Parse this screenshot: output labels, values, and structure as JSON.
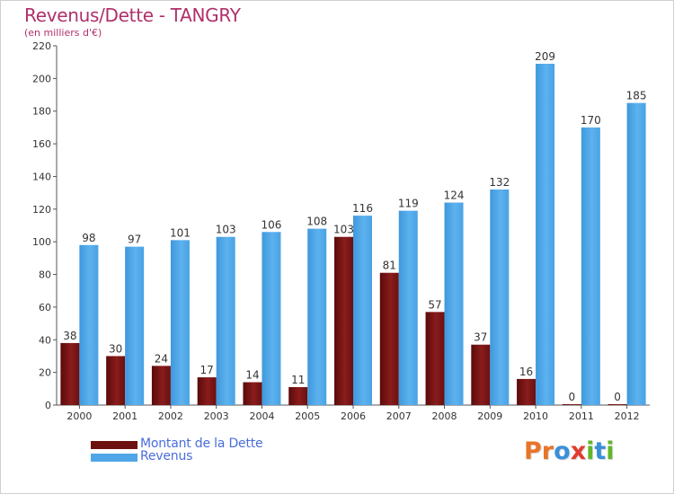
{
  "title": "Revenus/Dette - TANGRY",
  "subtitle": "(en milliers d'€)",
  "colors": {
    "title": "#b0306a",
    "debt": "#7a1414",
    "revenue": "#4ea6e8",
    "legend_text": "#4a6ddc"
  },
  "legend": [
    {
      "label": "Montant de la Dette",
      "color": "#6e0f0f"
    },
    {
      "label": "Revenus",
      "color": "#4ea6e8"
    }
  ],
  "logo": {
    "text": "Proxiti"
  },
  "chart_data": {
    "type": "bar",
    "categories": [
      "2000",
      "2001",
      "2002",
      "2003",
      "2004",
      "2005",
      "2006",
      "2007",
      "2008",
      "2009",
      "2010",
      "2011",
      "2012"
    ],
    "series": [
      {
        "name": "Montant de la Dette",
        "values": [
          38,
          30,
          24,
          17,
          14,
          11,
          103,
          81,
          57,
          37,
          16,
          0,
          0
        ]
      },
      {
        "name": "Revenus",
        "values": [
          98,
          97,
          101,
          103,
          106,
          108,
          116,
          119,
          124,
          132,
          209,
          170,
          185
        ]
      }
    ],
    "ylim": [
      0,
      220
    ],
    "yticks": [
      0,
      20,
      40,
      60,
      80,
      100,
      120,
      140,
      160,
      180,
      200,
      220
    ],
    "grid": false,
    "legend_position": "bottom-left"
  }
}
